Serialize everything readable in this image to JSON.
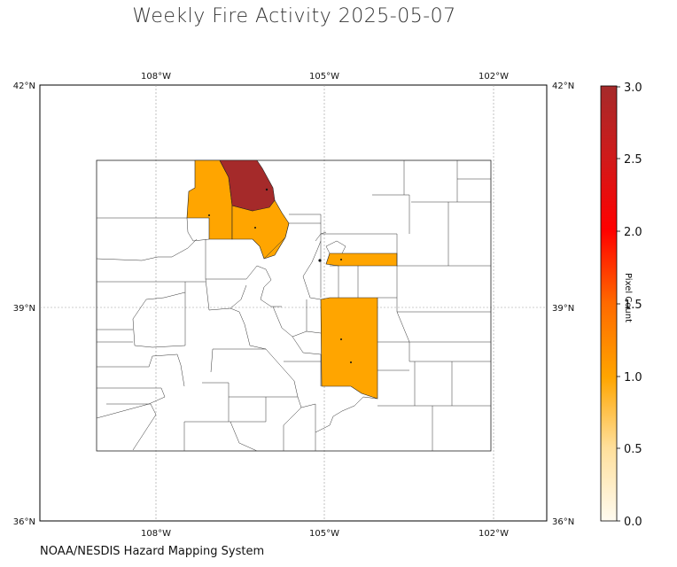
{
  "title": "Weekly Fire Activity 2025-05-07",
  "footer": "NOAA/NESDIS Hazard Mapping System",
  "map": {
    "lon_ticks_top": [
      "108°W",
      "105°W",
      "102°W"
    ],
    "lon_ticks_bottom": [
      "108°W",
      "105°W",
      "102°W"
    ],
    "lat_ticks_left": [
      "42°N",
      "39°N",
      "36°N"
    ],
    "lat_ticks_right": [
      "42°N",
      "39°N",
      "36°N"
    ],
    "colors": {
      "level_1": "#ffa500",
      "level_3": "#a52a2a",
      "county_line": "#333333",
      "background": "#ffffff"
    }
  },
  "colorbar": {
    "label": "Pixel Count",
    "ticks": [
      "0.0",
      "0.5",
      "1.0",
      "1.5",
      "2.0",
      "2.5",
      "3.0"
    ],
    "range": [
      0,
      3
    ],
    "colors": [
      "#fffbe6",
      "#ffd27a",
      "#ffa500",
      "#ff6a00",
      "#ff0000",
      "#d11a1a",
      "#a52a2a"
    ]
  }
}
